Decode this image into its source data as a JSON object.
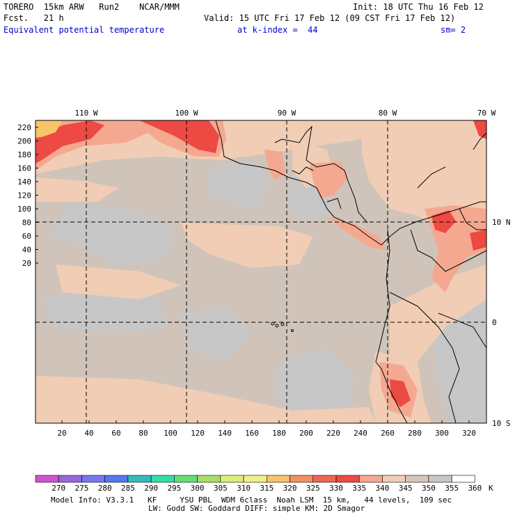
{
  "header": {
    "model": "TORERO  15km ARW   Run2    NCAR/MMM",
    "init": "Init: 18 UTC Thu 16 Feb 12",
    "fcst": "Fcst.   21 h",
    "valid": "Valid: 15 UTC Fri 17 Feb 12 (09 CST Fri 17 Feb 12)",
    "field": "Equivalent potential temperature",
    "level": "at k-index =  44",
    "smoothing": "sm= 2"
  },
  "map": {
    "lon_labels": [
      "110 W",
      "100 W",
      "90 W",
      "80 W",
      "70 W"
    ],
    "lat_labels": [
      "10 N",
      "0",
      "10 S"
    ],
    "y_ticks": [
      "220",
      "200",
      "180",
      "160",
      "140",
      "120",
      "100",
      "80",
      "60",
      "40",
      "20"
    ],
    "x_ticks": [
      "20",
      "40",
      "60",
      "80",
      "100",
      "120",
      "140",
      "160",
      "180",
      "200",
      "220",
      "240",
      "260",
      "280",
      "300",
      "320"
    ],
    "background_color": "#d0c4ba"
  },
  "colorbar": {
    "labels": [
      "270",
      "275",
      "280",
      "285",
      "290",
      "295",
      "300",
      "305",
      "310",
      "315",
      "320",
      "325",
      "330",
      "335",
      "340",
      "345",
      "350",
      "355",
      "360"
    ],
    "unit": "K",
    "colors": [
      "#cc55cc",
      "#9966dd",
      "#7777ee",
      "#5577ee",
      "#33bbbb",
      "#33ddaa",
      "#66dd77",
      "#aadd66",
      "#ddee77",
      "#f2ee88",
      "#f8c46a",
      "#f49060",
      "#ee6655",
      "#ec4a42",
      "#f5a890",
      "#f1cdb5",
      "#d5c6bc",
      "#c7c7c7",
      "#ffffff"
    ]
  },
  "footer": {
    "line1": "Model Info: V3.3.1   KF     YSU PBL  WDM 6class  Noah LSM  15 km,   44 levels,  109 sec",
    "line2": "LW: Godd SW: Goddard DIFF: simple KM: 2D Smagor"
  }
}
